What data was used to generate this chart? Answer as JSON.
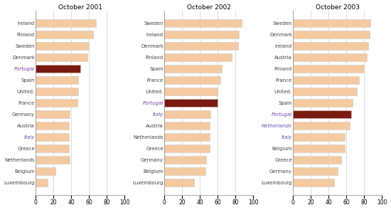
{
  "charts": [
    {
      "title": "October 2001",
      "countries": [
        "Ireland",
        "Finland",
        "Sweden",
        "Denmark",
        "Portugal",
        "Spain",
        "United.",
        "France",
        "Germany",
        "Austria",
        "Italy",
        "Greece",
        "Netherlands",
        "Belgium",
        "Luxembourg"
      ],
      "values": [
        68,
        65,
        60,
        58,
        50,
        48,
        48,
        47,
        38,
        37,
        37,
        37,
        38,
        22,
        13
      ],
      "highlight": "Portugal",
      "italic_labels": [
        "Italy"
      ]
    },
    {
      "title": "October 2002",
      "countries": [
        "Sweden",
        "Ireland",
        "Denmark",
        "Finland",
        "Spain",
        "France",
        "United.",
        "Portugal",
        "Italy",
        "Austria",
        "Netherlands",
        "Greece",
        "Germany",
        "Belgium",
        "Luxembourg"
      ],
      "values": [
        87,
        84,
        83,
        76,
        65,
        63,
        60,
        60,
        52,
        51,
        51,
        51,
        47,
        46,
        33
      ],
      "highlight": "Portugal",
      "italic_labels": [
        "Italy"
      ]
    },
    {
      "title": "October 2003",
      "countries": [
        "Sweden",
        "Denmark",
        "Ireland",
        "Austria",
        "Finland",
        "France",
        "United.",
        "Spain",
        "Portugal",
        "Netherlands",
        "Italy",
        "Belgium",
        "Greece",
        "Germany",
        "Luxembourg"
      ],
      "values": [
        87,
        86,
        85,
        83,
        80,
        74,
        72,
        67,
        65,
        64,
        58,
        58,
        54,
        50,
        46
      ],
      "highlight": "Portugal",
      "italic_labels": [
        "Italy",
        "Netherlands"
      ]
    }
  ],
  "bar_color": "#F5C9A0",
  "highlight_color": "#7B1A10",
  "highlight_label_color": "#7B3FA0",
  "italic_label_color": "#5555AA",
  "normal_label_color": "#444444",
  "xlim": [
    0,
    100
  ],
  "xticks": [
    0,
    20,
    40,
    60,
    80,
    100
  ],
  "background_color": "#FFFFFF",
  "border_color": "#888888"
}
